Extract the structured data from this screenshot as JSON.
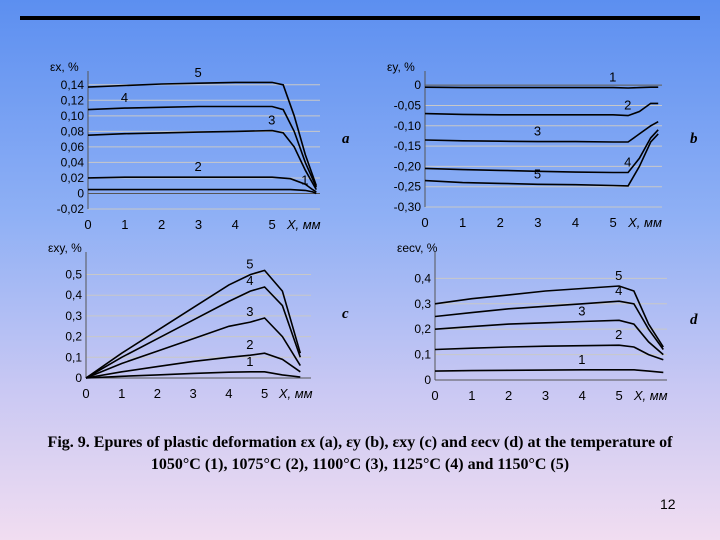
{
  "slide": {
    "caption_line1": "Fig. 9. Epures of plastic deformation εx (a), εy (b), εxy (c) and εecv (d) at the temperature of",
    "caption_line2": "1050°C (1), 1075°C (2), 1100°C (3), 1125°C (4) and 1150°C (5)",
    "page_number": "12",
    "colors": {
      "line": "#000000",
      "grid": "#c8c8c8",
      "rule": "#000000"
    }
  },
  "chart_data": [
    {
      "id": "a",
      "type": "line",
      "panel_letter": "a",
      "ylabel": "εx, %",
      "xlabel": "X, мм",
      "xlim": [
        0,
        6.3
      ],
      "ylim": [
        -0.02,
        0.15
      ],
      "xticks": [
        "0",
        "1",
        "2",
        "3",
        "4",
        "5"
      ],
      "yticks": [
        "-0,02",
        "0",
        "0,02",
        "0,04",
        "0,06",
        "0,08",
        "0,10",
        "0,12",
        "0,14"
      ],
      "ytick_values": [
        -0.02,
        0,
        0.02,
        0.04,
        0.06,
        0.08,
        0.1,
        0.12,
        0.14
      ],
      "series": [
        {
          "name": "1",
          "x": [
            0,
            1,
            2,
            3,
            4,
            5,
            5.5,
            5.9,
            6.1,
            6.2
          ],
          "y": [
            0.005,
            0.005,
            0.005,
            0.005,
            0.005,
            0.005,
            0.005,
            0.004,
            0.002,
            0.0
          ]
        },
        {
          "name": "2",
          "x": [
            0,
            1,
            2,
            3,
            4,
            5,
            5.5,
            5.9,
            6.1,
            6.2
          ],
          "y": [
            0.02,
            0.021,
            0.021,
            0.021,
            0.021,
            0.021,
            0.019,
            0.012,
            0.005,
            0.002
          ]
        },
        {
          "name": "3",
          "x": [
            0,
            1,
            2,
            3,
            4,
            5,
            5.3,
            5.6,
            5.9,
            6.2
          ],
          "y": [
            0.075,
            0.077,
            0.078,
            0.079,
            0.08,
            0.081,
            0.078,
            0.06,
            0.03,
            0.005
          ]
        },
        {
          "name": "4",
          "x": [
            0,
            1,
            2,
            3,
            4,
            5,
            5.3,
            5.6,
            5.9,
            6.2
          ],
          "y": [
            0.108,
            0.11,
            0.111,
            0.112,
            0.112,
            0.112,
            0.108,
            0.08,
            0.04,
            0.008
          ]
        },
        {
          "name": "5",
          "x": [
            0,
            1,
            2,
            3,
            4,
            5,
            5.3,
            5.6,
            5.9,
            6.2
          ],
          "y": [
            0.137,
            0.139,
            0.141,
            0.142,
            0.143,
            0.143,
            0.14,
            0.1,
            0.05,
            0.01
          ]
        }
      ]
    },
    {
      "id": "b",
      "type": "line",
      "panel_letter": "b",
      "ylabel": "εy, %",
      "xlabel": "X, мм",
      "xlim": [
        0,
        6.3
      ],
      "ylim": [
        -0.3,
        0.02
      ],
      "xticks": [
        "0",
        "1",
        "2",
        "3",
        "4",
        "5"
      ],
      "yticks": [
        "-0,30",
        "-0,25",
        "-0,20",
        "-0,15",
        "-0,10",
        "-0,05",
        "0"
      ],
      "ytick_values": [
        -0.3,
        -0.25,
        -0.2,
        -0.15,
        -0.1,
        -0.05,
        0
      ],
      "series": [
        {
          "name": "1",
          "x": [
            0,
            1,
            2,
            3,
            4,
            5,
            5.4,
            5.7,
            6.0,
            6.2
          ],
          "y": [
            -0.005,
            -0.006,
            -0.006,
            -0.006,
            -0.006,
            -0.006,
            -0.007,
            -0.006,
            -0.005,
            -0.005
          ]
        },
        {
          "name": "2",
          "x": [
            0,
            1,
            2,
            3,
            4,
            5,
            5.4,
            5.7,
            6.0,
            6.2
          ],
          "y": [
            -0.07,
            -0.072,
            -0.073,
            -0.073,
            -0.073,
            -0.073,
            -0.075,
            -0.065,
            -0.045,
            -0.045
          ]
        },
        {
          "name": "3",
          "x": [
            0,
            1,
            2,
            3,
            4,
            5,
            5.4,
            5.7,
            6.0,
            6.2
          ],
          "y": [
            -0.135,
            -0.137,
            -0.138,
            -0.139,
            -0.139,
            -0.14,
            -0.14,
            -0.12,
            -0.1,
            -0.09
          ]
        },
        {
          "name": "4",
          "x": [
            0,
            1,
            2,
            3,
            4,
            5,
            5.4,
            5.7,
            6.0,
            6.2
          ],
          "y": [
            -0.205,
            -0.208,
            -0.21,
            -0.212,
            -0.214,
            -0.215,
            -0.215,
            -0.18,
            -0.13,
            -0.11
          ]
        },
        {
          "name": "5",
          "x": [
            0,
            1,
            2,
            3,
            4,
            5,
            5.4,
            5.7,
            6.0,
            6.2
          ],
          "y": [
            -0.235,
            -0.24,
            -0.242,
            -0.244,
            -0.245,
            -0.247,
            -0.248,
            -0.2,
            -0.14,
            -0.12
          ]
        }
      ]
    },
    {
      "id": "c",
      "type": "line",
      "panel_letter": "c",
      "ylabel": "εxy, %",
      "xlabel": "X, мм",
      "xlim": [
        0,
        6.3
      ],
      "ylim": [
        0,
        0.58
      ],
      "xticks": [
        "0",
        "1",
        "2",
        "3",
        "4",
        "5"
      ],
      "yticks": [
        "0",
        "0,1",
        "0,2",
        "0,3",
        "0,4",
        "0,5"
      ],
      "ytick_values": [
        0,
        0.1,
        0.2,
        0.3,
        0.4,
        0.5
      ],
      "series": [
        {
          "name": "1",
          "x": [
            0,
            1,
            2,
            3,
            4,
            4.6,
            5.0,
            5.5,
            6.0
          ],
          "y": [
            0,
            0.008,
            0.015,
            0.022,
            0.028,
            0.03,
            0.03,
            0.015,
            0.005
          ]
        },
        {
          "name": "2",
          "x": [
            0,
            1,
            2,
            3,
            4,
            4.6,
            5.0,
            5.5,
            6.0
          ],
          "y": [
            0,
            0.03,
            0.055,
            0.08,
            0.1,
            0.11,
            0.12,
            0.09,
            0.03
          ]
        },
        {
          "name": "3",
          "x": [
            0,
            1,
            2,
            3,
            4,
            4.6,
            5.0,
            5.5,
            6.0
          ],
          "y": [
            0,
            0.07,
            0.13,
            0.19,
            0.25,
            0.27,
            0.29,
            0.2,
            0.06
          ]
        },
        {
          "name": "4",
          "x": [
            0,
            1,
            2,
            3,
            4,
            4.6,
            5.0,
            5.5,
            6.0
          ],
          "y": [
            0,
            0.1,
            0.19,
            0.28,
            0.37,
            0.42,
            0.44,
            0.35,
            0.1
          ]
        },
        {
          "name": "5",
          "x": [
            0,
            1,
            2,
            3,
            4,
            4.6,
            5.0,
            5.5,
            6.0
          ],
          "y": [
            0,
            0.12,
            0.23,
            0.34,
            0.45,
            0.5,
            0.52,
            0.42,
            0.12
          ]
        }
      ]
    },
    {
      "id": "d",
      "type": "line",
      "panel_letter": "d",
      "ylabel": "εecv, %",
      "xlabel": "X, мм",
      "xlim": [
        0,
        6.3
      ],
      "ylim": [
        0,
        0.48
      ],
      "xticks": [
        "0",
        "1",
        "2",
        "3",
        "4",
        "5"
      ],
      "yticks": [
        "0",
        "0,1",
        "0,2",
        "0,3",
        "0,4"
      ],
      "ytick_values": [
        0,
        0.1,
        0.2,
        0.3,
        0.4
      ],
      "series": [
        {
          "name": "1",
          "x": [
            0,
            1,
            2,
            3,
            4,
            5,
            5.4,
            5.8,
            6.2
          ],
          "y": [
            0.035,
            0.037,
            0.038,
            0.039,
            0.04,
            0.04,
            0.04,
            0.035,
            0.03
          ]
        },
        {
          "name": "2",
          "x": [
            0,
            1,
            2,
            3,
            4,
            5,
            5.4,
            5.8,
            6.2
          ],
          "y": [
            0.12,
            0.125,
            0.13,
            0.133,
            0.135,
            0.137,
            0.13,
            0.1,
            0.08
          ]
        },
        {
          "name": "3",
          "x": [
            0,
            1,
            2,
            3,
            4,
            5,
            5.4,
            5.8,
            6.2
          ],
          "y": [
            0.2,
            0.21,
            0.22,
            0.225,
            0.23,
            0.235,
            0.22,
            0.15,
            0.1
          ]
        },
        {
          "name": "4",
          "x": [
            0,
            1,
            2,
            3,
            4,
            5,
            5.4,
            5.8,
            6.2
          ],
          "y": [
            0.25,
            0.265,
            0.28,
            0.29,
            0.3,
            0.31,
            0.3,
            0.2,
            0.12
          ]
        },
        {
          "name": "5",
          "x": [
            0,
            1,
            2,
            3,
            4,
            5,
            5.4,
            5.8,
            6.2
          ],
          "y": [
            0.3,
            0.32,
            0.335,
            0.35,
            0.36,
            0.37,
            0.35,
            0.22,
            0.13
          ]
        }
      ]
    }
  ]
}
